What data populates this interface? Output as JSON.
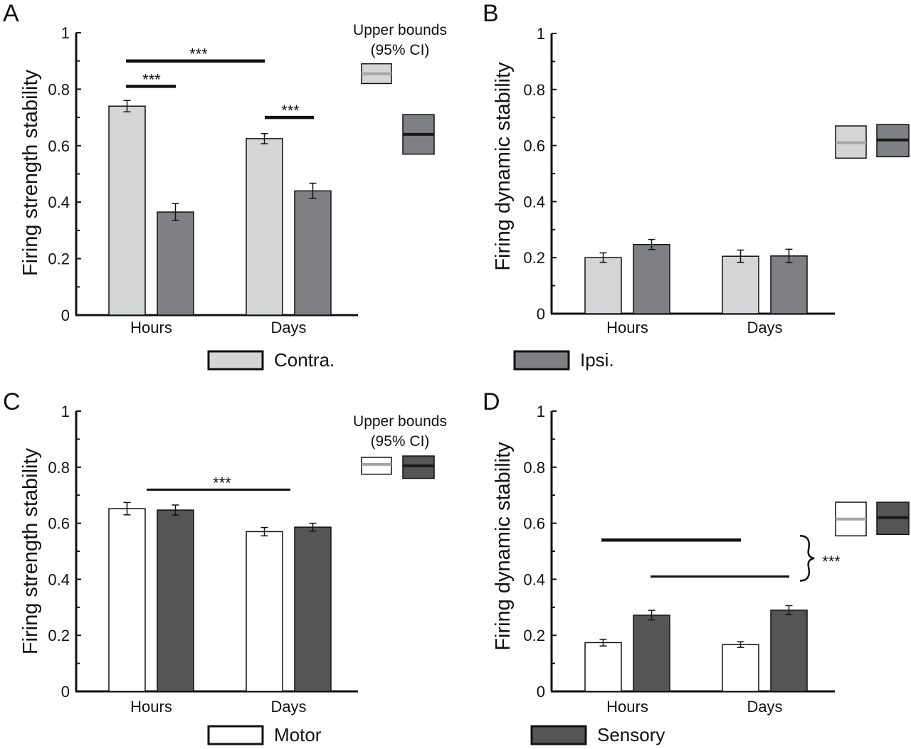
{
  "legend": {
    "contra": "Contra.",
    "ipsi": "Ipsi.",
    "motor": "Motor",
    "sensory": "Sensory"
  },
  "upper_bounds_label": [
    "Upper bounds",
    "(95% CI)"
  ],
  "colors": {
    "contra_light": "#d4d5d7",
    "ipsi_mid": "#7f8083",
    "motor_white": "#ffffff",
    "sensory_dark": "#555555",
    "axis": "#111111",
    "ci_light_line": "#a6a6a6",
    "ci_dark_line": "#1a1a1a"
  },
  "chart_data": [
    {
      "panel": "A",
      "type": "bar",
      "ylabel": "Firing strength stability",
      "ylim": [
        0,
        1
      ],
      "yticks": [
        "0",
        "0.2",
        "0.4",
        "0.6",
        "0.8",
        "1"
      ],
      "categories": [
        "Hours",
        "Days"
      ],
      "series": [
        {
          "name": "Contra.",
          "color": "#d4d5d7",
          "values": [
            0.74,
            0.625
          ],
          "errors": [
            0.02,
            0.018
          ]
        },
        {
          "name": "Ipsi.",
          "color": "#7f8083",
          "values": [
            0.365,
            0.44
          ],
          "errors": [
            0.03,
            0.027
          ]
        }
      ],
      "upper_bounds": {
        "label": "Upper bounds (95% CI)",
        "boxes": [
          {
            "series": "Contra.",
            "center": 0.855,
            "low": 0.82,
            "high": 0.89
          },
          {
            "series": "Ipsi.",
            "center": 0.64,
            "low": 0.57,
            "high": 0.71
          }
        ]
      },
      "annotations": [
        {
          "text": "***",
          "between": [
            "Hours/Contra.",
            "Days/Contra."
          ],
          "y": 0.9
        },
        {
          "text": "***",
          "between": [
            "Hours/Contra.",
            "Hours/Ipsi."
          ],
          "y": 0.81
        },
        {
          "text": "***",
          "between": [
            "Days/Contra.",
            "Days/Ipsi."
          ],
          "y": 0.7
        }
      ]
    },
    {
      "panel": "B",
      "type": "bar",
      "ylabel": "Firing dynamic stability",
      "ylim": [
        0,
        1
      ],
      "yticks": [
        "0",
        "0.2",
        "0.4",
        "0.6",
        "0.8",
        "1"
      ],
      "categories": [
        "Hours",
        "Days"
      ],
      "series": [
        {
          "name": "Contra.",
          "color": "#d4d5d7",
          "values": [
            0.2,
            0.205
          ],
          "errors": [
            0.017,
            0.022
          ]
        },
        {
          "name": "Ipsi.",
          "color": "#7f8083",
          "values": [
            0.247,
            0.206
          ],
          "errors": [
            0.018,
            0.024
          ]
        }
      ],
      "upper_bounds": {
        "boxes": [
          {
            "series": "Contra.",
            "center": 0.61,
            "low": 0.555,
            "high": 0.67
          },
          {
            "series": "Ipsi.",
            "center": 0.62,
            "low": 0.56,
            "high": 0.675
          }
        ]
      },
      "annotations": []
    },
    {
      "panel": "C",
      "type": "bar",
      "ylabel": "Firing strength stability",
      "ylim": [
        0,
        1
      ],
      "yticks": [
        "0",
        "0.2",
        "0.4",
        "0.6",
        "0.8",
        "1"
      ],
      "categories": [
        "Hours",
        "Days"
      ],
      "series": [
        {
          "name": "Motor",
          "color": "#ffffff",
          "values": [
            0.652,
            0.57
          ],
          "errors": [
            0.022,
            0.015
          ]
        },
        {
          "name": "Sensory",
          "color": "#555555",
          "values": [
            0.647,
            0.586
          ],
          "errors": [
            0.018,
            0.014
          ]
        }
      ],
      "upper_bounds": {
        "label": "Upper bounds (95% CI)",
        "boxes": [
          {
            "series": "Motor",
            "center": 0.81,
            "low": 0.775,
            "high": 0.835
          },
          {
            "series": "Sensory",
            "center": 0.805,
            "low": 0.76,
            "high": 0.84
          }
        ]
      },
      "annotations": [
        {
          "text": "***",
          "between": [
            "Hours",
            "Days"
          ],
          "y": 0.72
        }
      ]
    },
    {
      "panel": "D",
      "type": "bar",
      "ylabel": "Firing dynamic stability",
      "ylim": [
        0,
        1
      ],
      "yticks": [
        "0",
        "0.2",
        "0.4",
        "0.6",
        "0.8",
        "1"
      ],
      "categories": [
        "Hours",
        "Days"
      ],
      "series": [
        {
          "name": "Motor",
          "color": "#ffffff",
          "values": [
            0.174,
            0.167
          ],
          "errors": [
            0.012,
            0.01
          ]
        },
        {
          "name": "Sensory",
          "color": "#555555",
          "values": [
            0.272,
            0.29
          ],
          "errors": [
            0.017,
            0.016
          ]
        }
      ],
      "upper_bounds": {
        "boxes": [
          {
            "series": "Motor",
            "center": 0.615,
            "low": 0.555,
            "high": 0.675
          },
          {
            "series": "Sensory",
            "center": 0.62,
            "low": 0.56,
            "high": 0.675
          }
        ]
      },
      "annotations": [
        {
          "text": "***",
          "bracket": true,
          "lines": [
            {
              "between": [
                "Hours/Motor",
                "Days/Motor"
              ],
              "y": 0.54
            },
            {
              "between": [
                "Hours/Sensory",
                "Days/Sensory"
              ],
              "y": 0.41
            }
          ]
        }
      ]
    }
  ]
}
